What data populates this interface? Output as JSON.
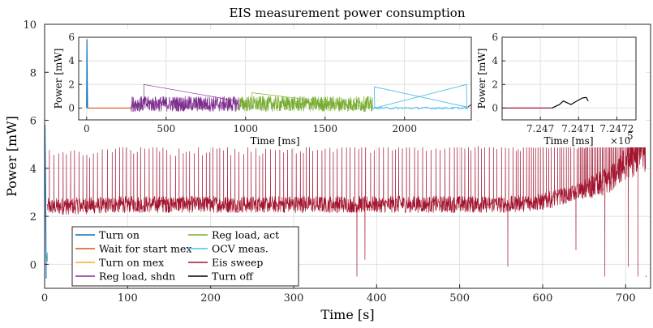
{
  "chart_data": [
    {
      "type": "line",
      "title": "EIS measurement power consumption",
      "xlabel": "Time [s]",
      "ylabel": "Power [mW]",
      "xlim": [
        0,
        730
      ],
      "ylim": [
        -1,
        10
      ],
      "xticks": [
        0,
        100,
        200,
        300,
        400,
        500,
        600,
        700
      ],
      "yticks": [
        0,
        2,
        4,
        6,
        8,
        10
      ],
      "grid": true,
      "legend_position": "lower-left",
      "colors": {
        "turn_on": "#0072BD",
        "wait_for_start_mex": "#D95319",
        "turn_on_mex": "#EDB120",
        "reg_load_shdn": "#7E2F8E",
        "reg_load_act": "#77AC30",
        "ocv_meas": "#4DBEEE",
        "eis_sweep": "#A2142F",
        "turn_off": "#000000"
      },
      "series": [
        {
          "name": "Turn on",
          "x": [
            0,
            0.5,
            1,
            1.5,
            2
          ],
          "y": [
            0,
            5.8,
            3.9,
            2.1,
            -0.6
          ]
        },
        {
          "name": "Wait for start mex",
          "x": [
            2,
            2.5
          ],
          "y": [
            0,
            0
          ]
        },
        {
          "name": "Turn on mex",
          "x": [
            2.5,
            2.8
          ],
          "y": [
            0.1,
            0.2
          ]
        },
        {
          "name": "Reg load, shdn",
          "x": [
            2.8,
            3.0
          ],
          "y": [
            0.4,
            0.2
          ]
        },
        {
          "name": "Reg load, act",
          "x": [
            3.0,
            3.2
          ],
          "y": [
            0.4,
            0.2
          ]
        },
        {
          "name": "OCV meas.",
          "x": [
            3.2,
            3.4
          ],
          "y": [
            0.5,
            0.1
          ]
        },
        {
          "name": "Eis sweep",
          "baseline_band": [
            2.1,
            2.8
          ],
          "x": [
            3.5,
            100,
            200,
            300,
            400,
            500,
            560,
            600,
            640,
            680,
            700,
            724
          ],
          "y": [
            2.4,
            2.5,
            2.5,
            2.5,
            2.5,
            2.5,
            2.5,
            2.6,
            3.0,
            3.5,
            4.2,
            4.7
          ],
          "spike_peaks": [
            4.6,
            4.8,
            4.7,
            4.7,
            4.8,
            4.8,
            4.9,
            4.9,
            5.0,
            5.3
          ],
          "dips": [
            [
              376,
              -0.5
            ],
            [
              386,
              0.2
            ],
            [
              558,
              -0.1
            ],
            [
              640,
              0.6
            ],
            [
              675,
              -0.5
            ],
            [
              703,
              -0.1
            ],
            [
              715,
              -0.5
            ]
          ]
        },
        {
          "name": "Turn off",
          "x": [
            724,
            725
          ],
          "y": [
            -0.5,
            -0.5
          ]
        }
      ]
    },
    {
      "type": "line",
      "title": "",
      "xlabel": "Time [ms]",
      "ylabel": "Power [mW]",
      "xlim": [
        -50,
        2420
      ],
      "ylim": [
        -1,
        6
      ],
      "xticks": [
        0,
        500,
        1000,
        1500,
        2000
      ],
      "yticks": [
        0,
        2,
        4,
        6
      ],
      "grid": true,
      "series": [
        {
          "name": "Turn on",
          "x": [
            0,
            2,
            4,
            6
          ],
          "y": [
            0,
            5.8,
            2.0,
            0
          ]
        },
        {
          "name": "Wait for start mex",
          "x": [
            6,
            280
          ],
          "y": [
            0,
            0
          ]
        },
        {
          "name": "Reg load, shdn",
          "x": [
            280,
            960
          ],
          "y": [
            0.5,
            0.5
          ],
          "band": [
            -0.3,
            1.0
          ],
          "peaks": [
            1.5,
            2.0
          ]
        },
        {
          "name": "Reg load, act",
          "x": [
            960,
            1800
          ],
          "y": [
            0.5,
            0.5
          ],
          "band": [
            -0.3,
            1.0
          ],
          "peaks": [
            1.3,
            1.3
          ]
        },
        {
          "name": "OCV meas.",
          "x": [
            1800,
            2400
          ],
          "y": [
            0,
            0
          ],
          "peaks": [
            1.8,
            2.0
          ]
        },
        {
          "name": "Eis sweep",
          "x": [
            2400,
            2420
          ],
          "y": [
            0.1,
            0.3
          ]
        }
      ]
    },
    {
      "type": "line",
      "title": "",
      "xlabel": "Time [ms]",
      "ylabel": "Power [mW]",
      "x_multiplier_label": "×10",
      "x_multiplier_exp": "5",
      "xlim": [
        724690,
        724725
      ],
      "ylim": [
        -1,
        6
      ],
      "xticks": [
        724700,
        724710,
        724720
      ],
      "xticklabels": [
        "7.247",
        "7.2471",
        "7.2472"
      ],
      "yticks": [
        0,
        2,
        4,
        6
      ],
      "grid": true,
      "series": [
        {
          "name": "Eis sweep",
          "x": [
            724690,
            724703
          ],
          "y": [
            0,
            0
          ]
        },
        {
          "name": "Turn off",
          "x": [
            724703,
            724705,
            724706,
            724708,
            724709,
            724711,
            724712,
            724712.5
          ],
          "y": [
            0,
            0.3,
            0.6,
            0.3,
            0.5,
            0.85,
            0.9,
            0.6
          ]
        }
      ]
    }
  ],
  "legend": {
    "entries": [
      {
        "label": "Turn on",
        "color": "#0072BD"
      },
      {
        "label": "Wait for start mex",
        "color": "#D95319"
      },
      {
        "label": "Turn on mex",
        "color": "#EDB120"
      },
      {
        "label": "Reg load, shdn",
        "color": "#7E2F8E"
      },
      {
        "label": "Reg load, act",
        "color": "#77AC30"
      },
      {
        "label": "OCV meas.",
        "color": "#4DBEEE"
      },
      {
        "label": "Eis sweep",
        "color": "#A2142F"
      },
      {
        "label": "Turn off",
        "color": "#000000"
      }
    ]
  }
}
